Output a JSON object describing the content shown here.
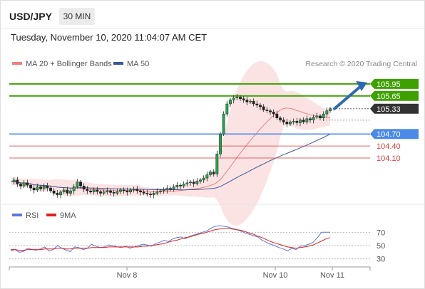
{
  "header": {
    "symbol": "USD/JPY",
    "timeframe": "30 MIN",
    "datetime": "Tuesday, November 10, 2020 11:04:07 AM CET"
  },
  "legend": {
    "ma20_bollinger": "MA 20 + Bollinger Bands",
    "ma50": "MA 50",
    "credit": "Research © 2020 Trading Central"
  },
  "colors": {
    "ma20": "#f08080",
    "bollinger_fill": "#fbdada",
    "ma50": "#3a5a9a",
    "resistance": "#3ea100",
    "pivot": "#4a8ae8",
    "support": "#e04040",
    "last_price_tag": "#333333",
    "forecast_arrow": "#2e6ab0",
    "rsi": "#5a7ad8",
    "rsi_ma": "#e02020"
  },
  "chart_data": [
    {
      "type": "candlestick",
      "symbol": "USD/JPY",
      "interval": "30 MIN",
      "ylim": [
        103.05,
        106.25
      ],
      "x_ticks": [
        "Nov 8",
        "Nov 10",
        "Nov 11"
      ],
      "series_names": [
        "MA 20 + Bollinger Bands",
        "MA 50"
      ],
      "close_path": [
        103.5,
        103.55,
        103.45,
        103.4,
        103.48,
        103.42,
        103.35,
        103.3,
        103.38,
        103.33,
        103.4,
        103.35,
        103.28,
        103.22,
        103.18,
        103.25,
        103.3,
        103.22,
        103.28,
        103.38,
        103.5,
        103.4,
        103.32,
        103.28,
        103.25,
        103.3,
        103.26,
        103.22,
        103.25,
        103.28,
        103.24,
        103.22,
        103.26,
        103.3,
        103.28,
        103.25,
        103.3,
        103.32,
        103.28,
        103.25,
        103.22,
        103.2,
        103.18,
        103.22,
        103.26,
        103.28,
        103.3,
        103.34,
        103.32,
        103.38,
        103.42,
        103.4,
        103.45,
        103.48,
        103.5,
        103.46,
        103.52,
        103.55,
        103.6,
        103.68,
        103.75,
        103.7,
        104.2,
        104.7,
        105.2,
        105.45,
        105.55,
        105.6,
        105.62,
        105.58,
        105.55,
        105.5,
        105.52,
        105.45,
        105.42,
        105.38,
        105.3,
        105.28,
        105.25,
        105.2,
        105.1,
        105.05,
        105.0,
        104.95,
        105.0,
        105.02,
        104.98,
        105.05,
        105.0,
        105.08,
        105.05,
        105.12,
        105.15,
        105.1,
        105.2,
        105.28,
        105.33
      ],
      "last_price": 105.33,
      "levels": {
        "resistance": [
          105.95,
          105.65
        ],
        "pivot": 104.7,
        "support": [
          104.4,
          104.1
        ]
      },
      "forecast": {
        "from": 105.33,
        "to": 105.95
      }
    },
    {
      "type": "line",
      "indicator": "RSI",
      "series_names": [
        "RSI",
        "9MA"
      ],
      "ylim": [
        20,
        80
      ],
      "y_ticks": [
        70,
        50,
        30
      ],
      "rsi": [
        42,
        44,
        40,
        41,
        46,
        44,
        43,
        45,
        48,
        42,
        44,
        50,
        46,
        43,
        41,
        48,
        47,
        44,
        46,
        52,
        49,
        47,
        48,
        51,
        50,
        48,
        47,
        49,
        46,
        48,
        50,
        52,
        51,
        49,
        53,
        55,
        58,
        56,
        60,
        62,
        63,
        60,
        64,
        66,
        68,
        70,
        72,
        76,
        79,
        80,
        79,
        78,
        76,
        74,
        72,
        69,
        67,
        65,
        63,
        58,
        55,
        52,
        50,
        47,
        45,
        42,
        46,
        44,
        49,
        50,
        52,
        55,
        62,
        70,
        70,
        70
      ],
      "ma": [
        44,
        44,
        43,
        43,
        44,
        44,
        44,
        44,
        45,
        45,
        45,
        46,
        46,
        45,
        45,
        46,
        46,
        46,
        46,
        47,
        47,
        47,
        47,
        48,
        48,
        48,
        48,
        48,
        48,
        48,
        48,
        49,
        49,
        50,
        51,
        52,
        53,
        55,
        57,
        58,
        60,
        62,
        63,
        65,
        67,
        68,
        70,
        72,
        74,
        75,
        76,
        76,
        75,
        74,
        73,
        71,
        69,
        67,
        64,
        62,
        59,
        56,
        54,
        52,
        50,
        48,
        47,
        46,
        47,
        48,
        49,
        51,
        54,
        57,
        60,
        62
      ]
    }
  ]
}
